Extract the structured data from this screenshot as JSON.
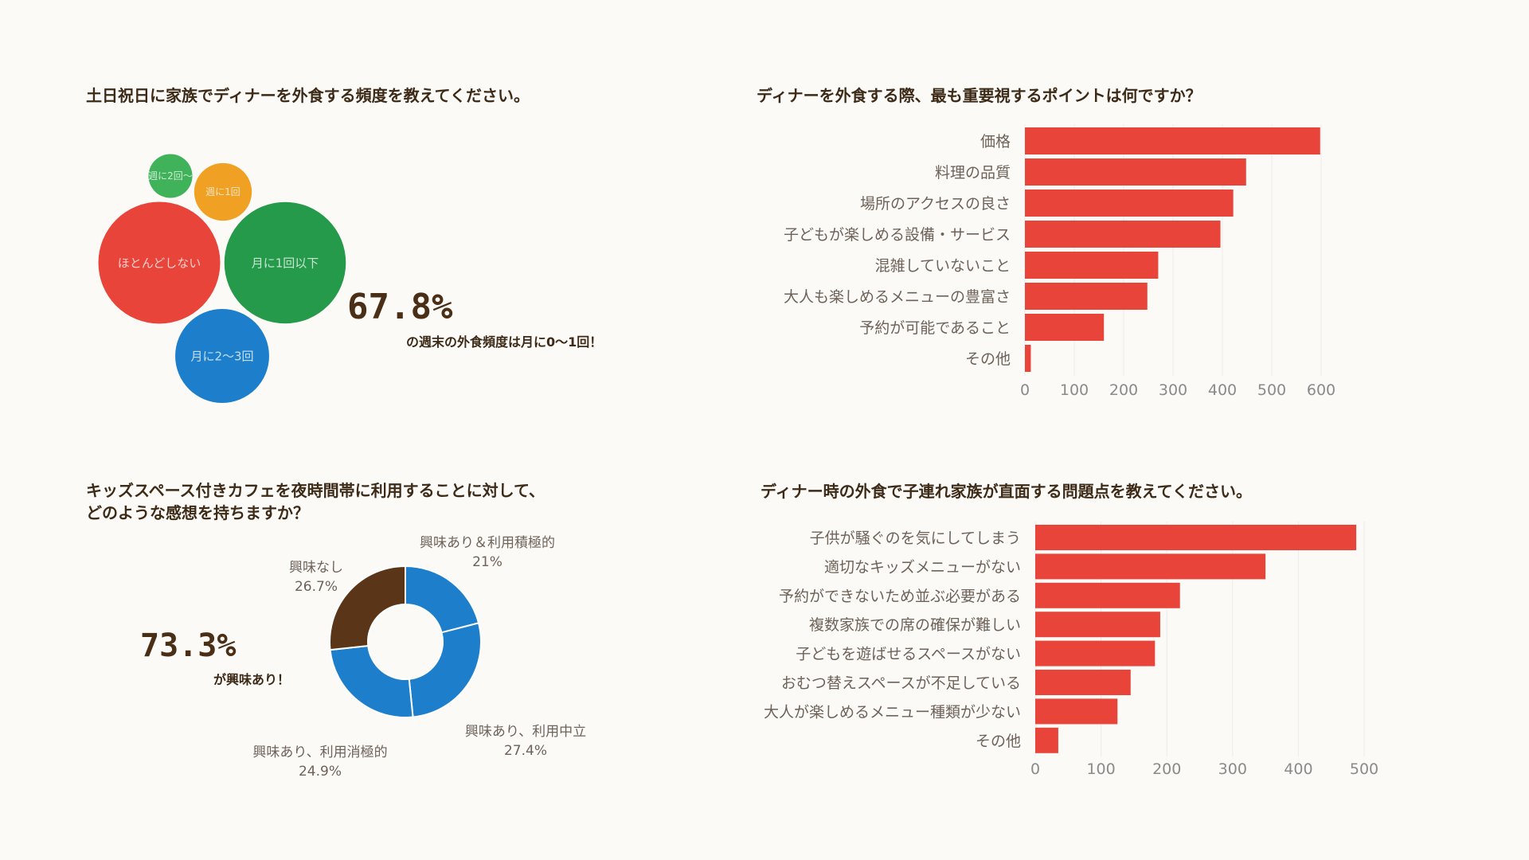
{
  "colors": {
    "background": "#fbfaf7",
    "bar": "#e8443a",
    "title_text": "#3d2a17",
    "label_text": "#6e6259",
    "axis_text": "#8a8a8a",
    "grid": "#ececec",
    "stat_text": "#4a2e16"
  },
  "panels": {
    "frequency": {
      "title": "土日祝日に家族でディナーを外食する頻度を教えてください。",
      "stat_value": "67.8%",
      "stat_note": "の週末の外食頻度は月に0〜1回！"
    },
    "priority": {
      "title": "ディナーを外食する際、最も重要視するポイントは何ですか？"
    },
    "kids_cafe": {
      "title_line1": "キッズスペース付きカフェを夜時間帯に利用することに対して、",
      "title_line2": "どのような感想を持ちますか？",
      "stat_value": "73.3%",
      "stat_note": "が興味あり！"
    },
    "problems": {
      "title": "ディナー時の外食で子連れ家族が直面する問題点を教えてください。"
    }
  },
  "chart_data": [
    {
      "type": "bubble",
      "title": "土日祝日に家族でディナーを外食する頻度を教えてください。",
      "items": [
        {
          "label": "ほとんどしない",
          "value": 34.0,
          "color": "#e8443a"
        },
        {
          "label": "月に1回以下",
          "value": 33.8,
          "color": "#259a4b"
        },
        {
          "label": "月に2〜3回",
          "value": 20.2,
          "color": "#1d7fcb"
        },
        {
          "label": "週に1回",
          "value": 7.6,
          "color": "#f0a023"
        },
        {
          "label": "週に2回〜",
          "value": 4.4,
          "color": "#3fb25a"
        }
      ]
    },
    {
      "type": "bar",
      "orientation": "horizontal",
      "title": "ディナーを外食する際、最も重要視するポイントは何ですか？",
      "categories": [
        "価格",
        "料理の品質",
        "場所のアクセスの良さ",
        "子どもが楽しめる設備・サービス",
        "混雑していないこと",
        "大人も楽しめるメニューの豊富さ",
        "予約が可能であること",
        "その他"
      ],
      "values": [
        598,
        448,
        422,
        396,
        270,
        248,
        160,
        12
      ],
      "xlim": [
        0,
        600
      ],
      "xticks": [
        0,
        100,
        200,
        300,
        400,
        500,
        600
      ],
      "grid": true
    },
    {
      "type": "donut",
      "title": "キッズスペース付きカフェを夜時間帯に利用することに対して、どのような感想を持ちますか？",
      "slices": [
        {
          "label": "興味あり＆利用積極的",
          "value": 21,
          "display": "21%",
          "color": "#1d7fcb"
        },
        {
          "label": "興味あり、利用中立",
          "value": 27.4,
          "display": "27.4%",
          "color": "#1d7fcb"
        },
        {
          "label": "興味あり、利用消極的",
          "value": 24.9,
          "display": "24.9%",
          "color": "#1d7fcb"
        },
        {
          "label": "興味なし",
          "value": 26.7,
          "display": "26.7%",
          "color": "#5a3518"
        }
      ]
    },
    {
      "type": "bar",
      "orientation": "horizontal",
      "title": "ディナー時の外食で子連れ家族が直面する問題点を教えてください。",
      "categories": [
        "子供が騒ぐのを気にしてしまう",
        "適切なキッズメニューがない",
        "予約ができないため並ぶ必要がある",
        "複数家族での席の確保が難しい",
        "子どもを遊ばせるスペースがない",
        "おむつ替えスペースが不足している",
        "大人が楽しめるメニュー種類が少ない",
        "その他"
      ],
      "values": [
        488,
        350,
        220,
        190,
        182,
        145,
        125,
        35
      ],
      "xlim": [
        0,
        500
      ],
      "xticks": [
        0,
        100,
        200,
        300,
        400,
        500
      ],
      "grid": true
    }
  ]
}
